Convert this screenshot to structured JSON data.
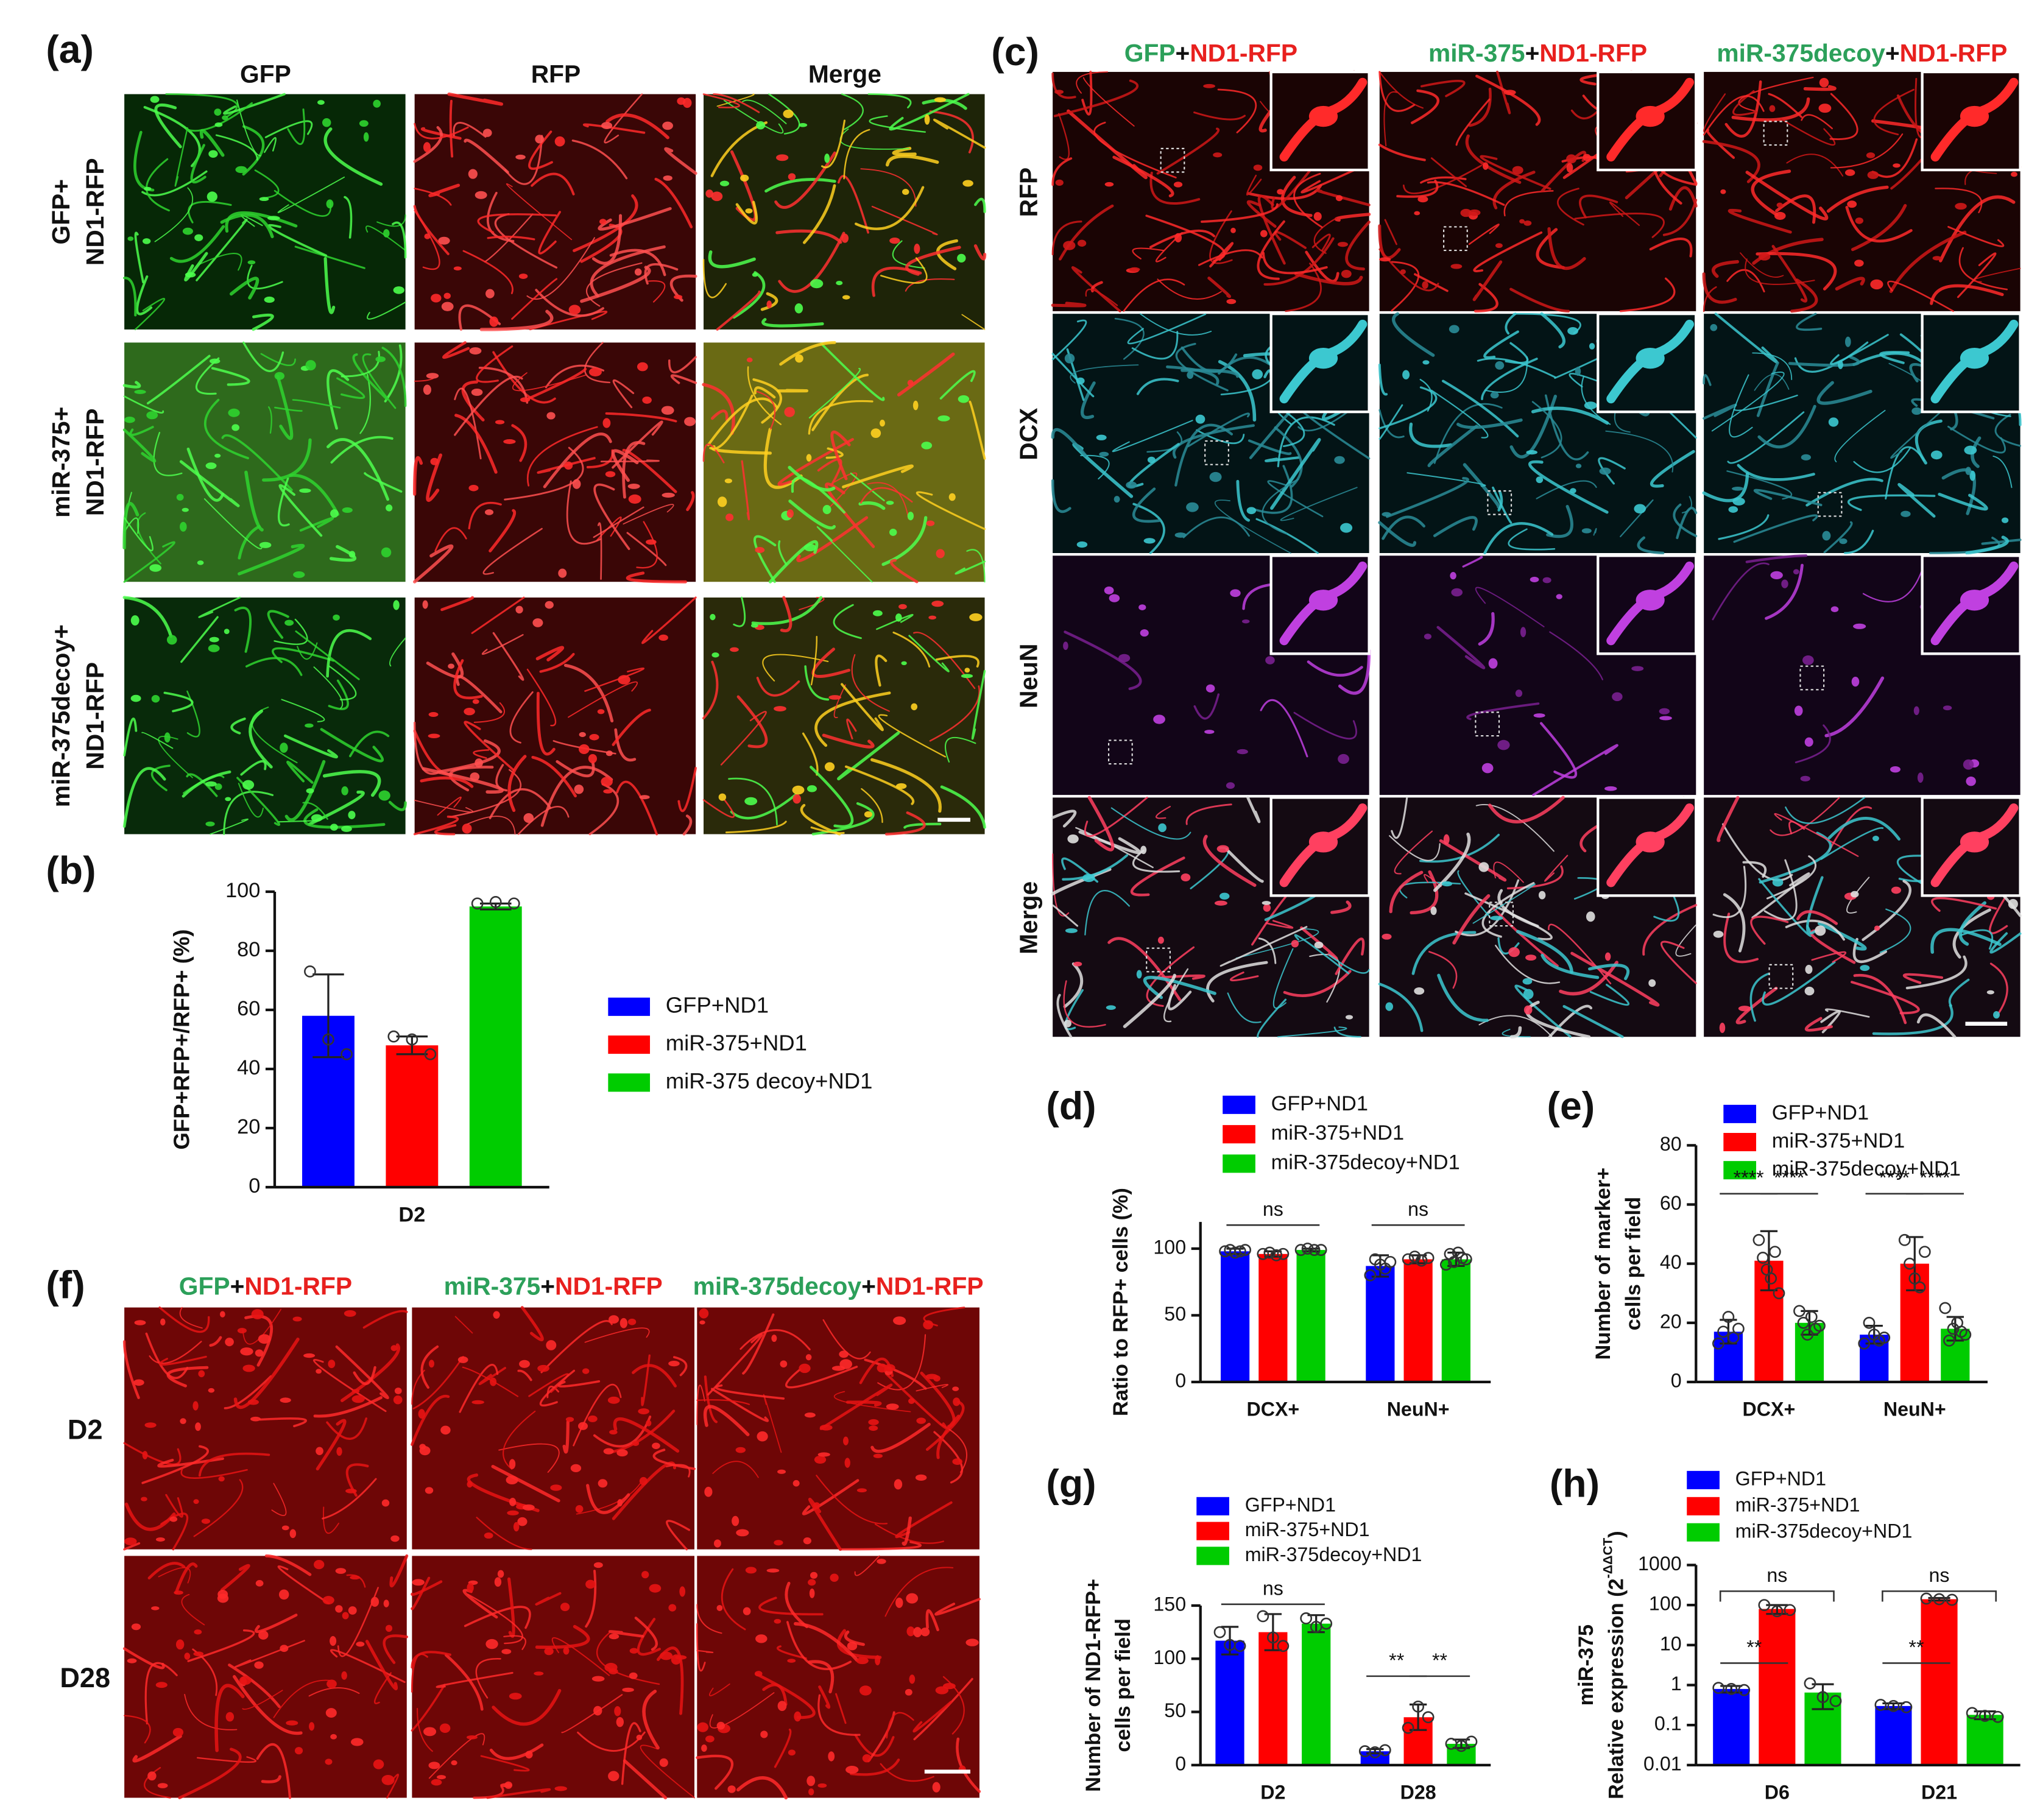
{
  "figure": {
    "a": {
      "label": "(a)",
      "columns": [
        {
          "text": "GFP",
          "color": "#2ca05a"
        },
        {
          "text": "RFP",
          "color": "#e8201e"
        },
        {
          "text": "Merge",
          "color": "#111111"
        }
      ],
      "rows": [
        [
          {
            "text": "GFP+",
            "color": "#2ca05a"
          },
          {
            "text": "ND1-RFP",
            "color": "#e8201e"
          }
        ],
        [
          {
            "text": "miR-375+",
            "color": "#2ca05a"
          },
          {
            "text": "ND1-RFP",
            "color": "#e8201e"
          }
        ],
        [
          {
            "text": "miR-375decoy+",
            "color": "#2ca05a"
          },
          {
            "text": "ND1-RFP",
            "color": "#e8201e"
          }
        ]
      ]
    },
    "c": {
      "label": "(c)",
      "columns": [
        [
          {
            "text": "GFP",
            "color": "#2ca05a"
          },
          {
            "text": "+",
            "color": "#111111"
          },
          {
            "text": "ND1-RFP",
            "color": "#e8201e"
          }
        ],
        [
          {
            "text": "miR-375",
            "color": "#2ca05a"
          },
          {
            "text": "+",
            "color": "#111111"
          },
          {
            "text": "ND1-RFP",
            "color": "#e8201e"
          }
        ],
        [
          {
            "text": "miR-375decoy",
            "color": "#2ca05a"
          },
          {
            "text": "+",
            "color": "#111111"
          },
          {
            "text": "ND1-RFP",
            "color": "#e8201e"
          }
        ]
      ],
      "rows": [
        {
          "text": "RFP",
          "color": "#e8201e"
        },
        {
          "text": "DCX",
          "color": "#2bbcd0"
        },
        {
          "text": "NeuN",
          "color": "#c020e0"
        },
        {
          "text": "Merge",
          "color": "#111111"
        }
      ]
    },
    "f": {
      "label": "(f)",
      "columns": [
        [
          {
            "text": "GFP",
            "color": "#2ca05a"
          },
          {
            "text": "+",
            "color": "#111111"
          },
          {
            "text": "ND1-RFP",
            "color": "#e8201e"
          }
        ],
        [
          {
            "text": "miR-375",
            "color": "#2ca05a"
          },
          {
            "text": "+",
            "color": "#111111"
          },
          {
            "text": "ND1-RFP",
            "color": "#e8201e"
          }
        ],
        [
          {
            "text": "miR-375decoy",
            "color": "#2ca05a"
          },
          {
            "text": "+",
            "color": "#111111"
          },
          {
            "text": "ND1-RFP",
            "color": "#e8201e"
          }
        ]
      ],
      "rows": [
        {
          "text": "D2",
          "color": "#111111"
        },
        {
          "text": "D28",
          "color": "#111111"
        }
      ]
    }
  },
  "chart_data": [
    {
      "type": "bar",
      "label": "(b)",
      "ylabel": [
        "GFP+RFP+/RFP+ (%)"
      ],
      "categories": [
        "D2"
      ],
      "ylim": [
        0,
        100
      ],
      "yticks": [
        0,
        20,
        40,
        60,
        80,
        100
      ],
      "series": [
        {
          "name": "GFP+ND1",
          "color": "#0000ff",
          "values": [
            58
          ],
          "errors": [
            14
          ],
          "points": [
            [
              73,
              50,
              45
            ]
          ]
        },
        {
          "name": "miR-375+ND1",
          "color": "#ff0000",
          "values": [
            48
          ],
          "errors": [
            3
          ],
          "points": [
            [
              51,
              50,
              45
            ]
          ]
        },
        {
          "name": "miR-375 decoy+ND1",
          "color": "#00cc00",
          "values": [
            95
          ],
          "errors": [
            1
          ],
          "points": [
            [
              96,
              96.5,
              96
            ]
          ]
        }
      ]
    },
    {
      "type": "bar",
      "label": "(d)",
      "ylabel": [
        "Ratio to RFP+ cells (%)"
      ],
      "categories": [
        "DCX+",
        "NeuN+"
      ],
      "ylim": [
        0,
        120
      ],
      "yticks": [
        0,
        50,
        100
      ],
      "annotations": [
        "ns",
        "ns"
      ],
      "series": [
        {
          "name": "GFP+ND1",
          "color": "#0000ff",
          "values": [
            98,
            87
          ],
          "errors": [
            2,
            8
          ],
          "points": [
            [
              98,
              99,
              97,
              98,
              99
            ],
            [
              80,
              92,
              88,
              85,
              90
            ]
          ]
        },
        {
          "name": "miR-375+ND1",
          "color": "#ff0000",
          "values": [
            96,
            92
          ],
          "errors": [
            2,
            3
          ],
          "points": [
            [
              96,
              97,
              95,
              96
            ],
            [
              92,
              94,
              91,
              93
            ]
          ]
        },
        {
          "name": "miR-375decoy+ND1",
          "color": "#00cc00",
          "values": [
            99,
            92
          ],
          "errors": [
            1,
            5
          ],
          "points": [
            [
              99,
              100,
              99,
              99
            ],
            [
              88,
              96,
              90,
              97,
              93,
              92
            ]
          ]
        }
      ]
    },
    {
      "type": "bar",
      "label": "(e)",
      "ylabel": [
        "Number of marker+",
        "cells per field"
      ],
      "categories": [
        "DCX+",
        "NeuN+"
      ],
      "ylim": [
        0,
        80
      ],
      "yticks": [
        0,
        20,
        40,
        60,
        80
      ],
      "annotations": [
        "****",
        "****",
        "****",
        "****"
      ],
      "series": [
        {
          "name": "GFP+ND1",
          "color": "#0000ff",
          "values": [
            17,
            16
          ],
          "errors": [
            4,
            3
          ],
          "points": [
            [
              13,
              17,
              22,
              15,
              18
            ],
            [
              13,
              20,
              16,
              14,
              15
            ]
          ]
        },
        {
          "name": "miR-375+ND1",
          "color": "#ff0000",
          "values": [
            41,
            40
          ],
          "errors": [
            10,
            9
          ],
          "points": [
            [
              48,
              42,
              38,
              35,
              44,
              30
            ],
            [
              48,
              40,
              35,
              32,
              44
            ]
          ]
        },
        {
          "name": "miR-375decoy+ND1",
          "color": "#00cc00",
          "values": [
            20,
            18
          ],
          "errors": [
            4,
            4
          ],
          "points": [
            [
              24,
              20,
              16,
              22,
              18,
              19
            ],
            [
              25,
              14,
              18,
              20,
              17,
              16
            ]
          ]
        }
      ]
    },
    {
      "type": "bar",
      "label": "(g)",
      "ylabel": [
        "Number of ND1-RFP+",
        "cells per field"
      ],
      "categories": [
        "D2",
        "D28"
      ],
      "ylim": [
        0,
        150
      ],
      "yticks": [
        0,
        50,
        100,
        150
      ],
      "annotations": [
        "ns",
        "**",
        "**"
      ],
      "series": [
        {
          "name": "GFP+ND1",
          "color": "#0000ff",
          "values": [
            117,
            13
          ],
          "errors": [
            13,
            2
          ],
          "points": [
            [
              125,
              113,
              112
            ],
            [
              13,
              12,
              14
            ]
          ]
        },
        {
          "name": "miR-375+ND1",
          "color": "#ff0000",
          "values": [
            125,
            45
          ],
          "errors": [
            17,
            12
          ],
          "points": [
            [
              140,
              120,
              112
            ],
            [
              35,
              55,
              45
            ]
          ]
        },
        {
          "name": "miR-375decoy+ND1",
          "color": "#00cc00",
          "values": [
            133,
            20
          ],
          "errors": [
            8,
            4
          ],
          "points": [
            [
              138,
              130,
              133
            ],
            [
              20,
              18,
              22
            ]
          ]
        }
      ]
    },
    {
      "type": "bar",
      "label": "(h)",
      "ylabel": [
        "miR-375",
        "Relative expression (2"
      ],
      "ylabel_superscript": "-ΔΔCT",
      "ylabel_suffix": ")",
      "categories": [
        "D6",
        "D21"
      ],
      "log_scale": true,
      "ylim": [
        0.01,
        1000
      ],
      "yticks": [
        0.01,
        0.1,
        1,
        10,
        100,
        1000
      ],
      "annotations": [
        "ns",
        "**",
        "ns",
        "**"
      ],
      "series": [
        {
          "name": "GFP+ND1",
          "color": "#0000ff",
          "values": [
            0.8,
            0.3
          ],
          "errors": [
            0.15,
            0.05
          ],
          "points": [
            [
              0.85,
              0.8,
              0.75
            ],
            [
              0.32,
              0.3,
              0.28
            ]
          ]
        },
        {
          "name": "miR-375+ND1",
          "color": "#ff0000",
          "values": [
            80,
            140
          ],
          "errors": [
            20,
            10
          ],
          "points": [
            [
              100,
              70,
              75
            ],
            [
              145,
              140,
              135
            ]
          ]
        },
        {
          "name": "miR-375decoy+ND1",
          "color": "#00cc00",
          "values": [
            0.65,
            0.18
          ],
          "errors": [
            0.4,
            0.04
          ],
          "points": [
            [
              1.1,
              0.5,
              0.4
            ],
            [
              0.2,
              0.17,
              0.16
            ]
          ]
        }
      ]
    }
  ]
}
